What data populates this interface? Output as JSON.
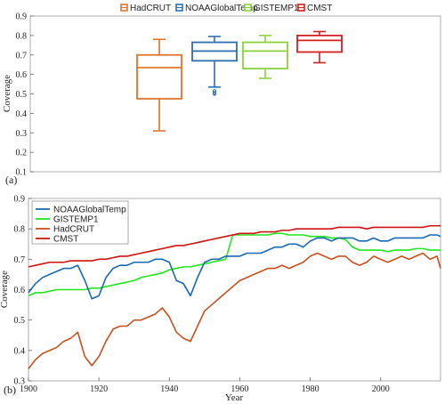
{
  "colors": {
    "HadCRUT": "#e0742a",
    "NOAAGlobalTemp": "#2e6fb0",
    "GISTEMP1": "#8dd23c",
    "CMST": "#d42020",
    "line_HadCRUT": "#c8501e",
    "line_NOAAGlobalTemp": "#1a6ab3",
    "line_GISTEMP1": "#22e61e",
    "line_CMST": "#d01212"
  },
  "chart_data": [
    {
      "panel_label": "(a)",
      "type": "box",
      "ylabel": "Coverage",
      "ylim": [
        0.1,
        0.9
      ],
      "yticks": [
        "0.1",
        "0.2",
        "0.3",
        "0.4",
        "0.5",
        "0.6",
        "0.7",
        "0.8",
        "0.9"
      ],
      "legend": [
        "HadCRUT",
        "NOAAGlobalTemp",
        "GISTEMP1",
        "CMST"
      ],
      "legend_position": "top",
      "boxes": [
        {
          "name": "HadCRUT",
          "min": 0.31,
          "q1": 0.475,
          "median": 0.635,
          "q3": 0.7,
          "max": 0.78,
          "outliers": []
        },
        {
          "name": "NOAAGlobalTemp",
          "min": 0.535,
          "q1": 0.67,
          "median": 0.72,
          "q3": 0.765,
          "max": 0.795,
          "outliers": [
            0.515,
            0.505,
            0.5
          ]
        },
        {
          "name": "GISTEMP1",
          "min": 0.58,
          "q1": 0.63,
          "median": 0.72,
          "q3": 0.765,
          "max": 0.8,
          "outliers": []
        },
        {
          "name": "CMST",
          "min": 0.66,
          "q1": 0.715,
          "median": 0.775,
          "q3": 0.8,
          "max": 0.82,
          "outliers": []
        }
      ]
    },
    {
      "panel_label": "(b)",
      "type": "line",
      "xlabel": "Year",
      "ylabel": "Coverage",
      "xlim": [
        1900,
        2017
      ],
      "ylim": [
        0.3,
        0.9
      ],
      "xticks": [
        "1900",
        "1920",
        "1940",
        "1960",
        "1980",
        "2000"
      ],
      "yticks": [
        "0.3",
        "0.4",
        "0.5",
        "0.6",
        "0.7",
        "0.8",
        "0.9"
      ],
      "legend_position": "top-left",
      "x": [
        1900,
        1902,
        1904,
        1906,
        1908,
        1910,
        1912,
        1914,
        1916,
        1918,
        1920,
        1922,
        1924,
        1926,
        1928,
        1930,
        1932,
        1934,
        1936,
        1938,
        1940,
        1942,
        1944,
        1946,
        1948,
        1950,
        1952,
        1954,
        1956,
        1958,
        1960,
        1962,
        1964,
        1966,
        1968,
        1970,
        1972,
        1974,
        1976,
        1978,
        1980,
        1982,
        1984,
        1986,
        1988,
        1990,
        1992,
        1994,
        1996,
        1998,
        2000,
        2002,
        2004,
        2006,
        2008,
        2010,
        2012,
        2014,
        2016,
        2017
      ],
      "series": [
        {
          "name": "NOAAGlobalTemp",
          "values": [
            0.59,
            0.62,
            0.64,
            0.65,
            0.66,
            0.67,
            0.67,
            0.68,
            0.63,
            0.57,
            0.58,
            0.64,
            0.67,
            0.68,
            0.68,
            0.69,
            0.69,
            0.69,
            0.7,
            0.7,
            0.69,
            0.63,
            0.62,
            0.58,
            0.64,
            0.69,
            0.7,
            0.7,
            0.71,
            0.71,
            0.71,
            0.72,
            0.72,
            0.72,
            0.73,
            0.74,
            0.74,
            0.75,
            0.75,
            0.74,
            0.76,
            0.77,
            0.77,
            0.76,
            0.77,
            0.77,
            0.77,
            0.76,
            0.76,
            0.77,
            0.76,
            0.76,
            0.77,
            0.77,
            0.77,
            0.77,
            0.77,
            0.78,
            0.78,
            0.775
          ]
        },
        {
          "name": "GISTEMP1",
          "values": [
            0.58,
            0.59,
            0.59,
            0.595,
            0.6,
            0.6,
            0.6,
            0.6,
            0.6,
            0.605,
            0.605,
            0.61,
            0.615,
            0.62,
            0.625,
            0.63,
            0.64,
            0.645,
            0.65,
            0.655,
            0.665,
            0.67,
            0.675,
            0.675,
            0.68,
            0.685,
            0.69,
            0.695,
            0.7,
            0.78,
            0.78,
            0.78,
            0.78,
            0.78,
            0.78,
            0.785,
            0.785,
            0.78,
            0.78,
            0.78,
            0.775,
            0.775,
            0.775,
            0.77,
            0.77,
            0.765,
            0.74,
            0.73,
            0.73,
            0.73,
            0.73,
            0.725,
            0.73,
            0.73,
            0.73,
            0.735,
            0.735,
            0.73,
            0.73,
            0.73
          ]
        },
        {
          "name": "HadCRUT",
          "values": [
            0.34,
            0.37,
            0.39,
            0.4,
            0.41,
            0.43,
            0.44,
            0.46,
            0.38,
            0.35,
            0.38,
            0.43,
            0.47,
            0.48,
            0.48,
            0.5,
            0.5,
            0.51,
            0.52,
            0.54,
            0.51,
            0.46,
            0.44,
            0.43,
            0.48,
            0.53,
            0.55,
            0.57,
            0.59,
            0.61,
            0.63,
            0.64,
            0.65,
            0.66,
            0.67,
            0.67,
            0.68,
            0.67,
            0.68,
            0.69,
            0.71,
            0.72,
            0.71,
            0.7,
            0.71,
            0.71,
            0.69,
            0.68,
            0.69,
            0.71,
            0.7,
            0.69,
            0.7,
            0.71,
            0.7,
            0.71,
            0.72,
            0.7,
            0.71,
            0.67
          ]
        },
        {
          "name": "CMST",
          "values": [
            0.675,
            0.68,
            0.685,
            0.69,
            0.69,
            0.69,
            0.695,
            0.695,
            0.695,
            0.695,
            0.7,
            0.7,
            0.705,
            0.71,
            0.71,
            0.715,
            0.72,
            0.725,
            0.73,
            0.735,
            0.74,
            0.745,
            0.745,
            0.75,
            0.755,
            0.76,
            0.765,
            0.77,
            0.775,
            0.78,
            0.785,
            0.785,
            0.785,
            0.79,
            0.79,
            0.79,
            0.795,
            0.795,
            0.8,
            0.8,
            0.8,
            0.8,
            0.8,
            0.8,
            0.805,
            0.805,
            0.805,
            0.805,
            0.8,
            0.805,
            0.805,
            0.805,
            0.805,
            0.805,
            0.805,
            0.805,
            0.805,
            0.81,
            0.81,
            0.81
          ]
        }
      ]
    }
  ]
}
